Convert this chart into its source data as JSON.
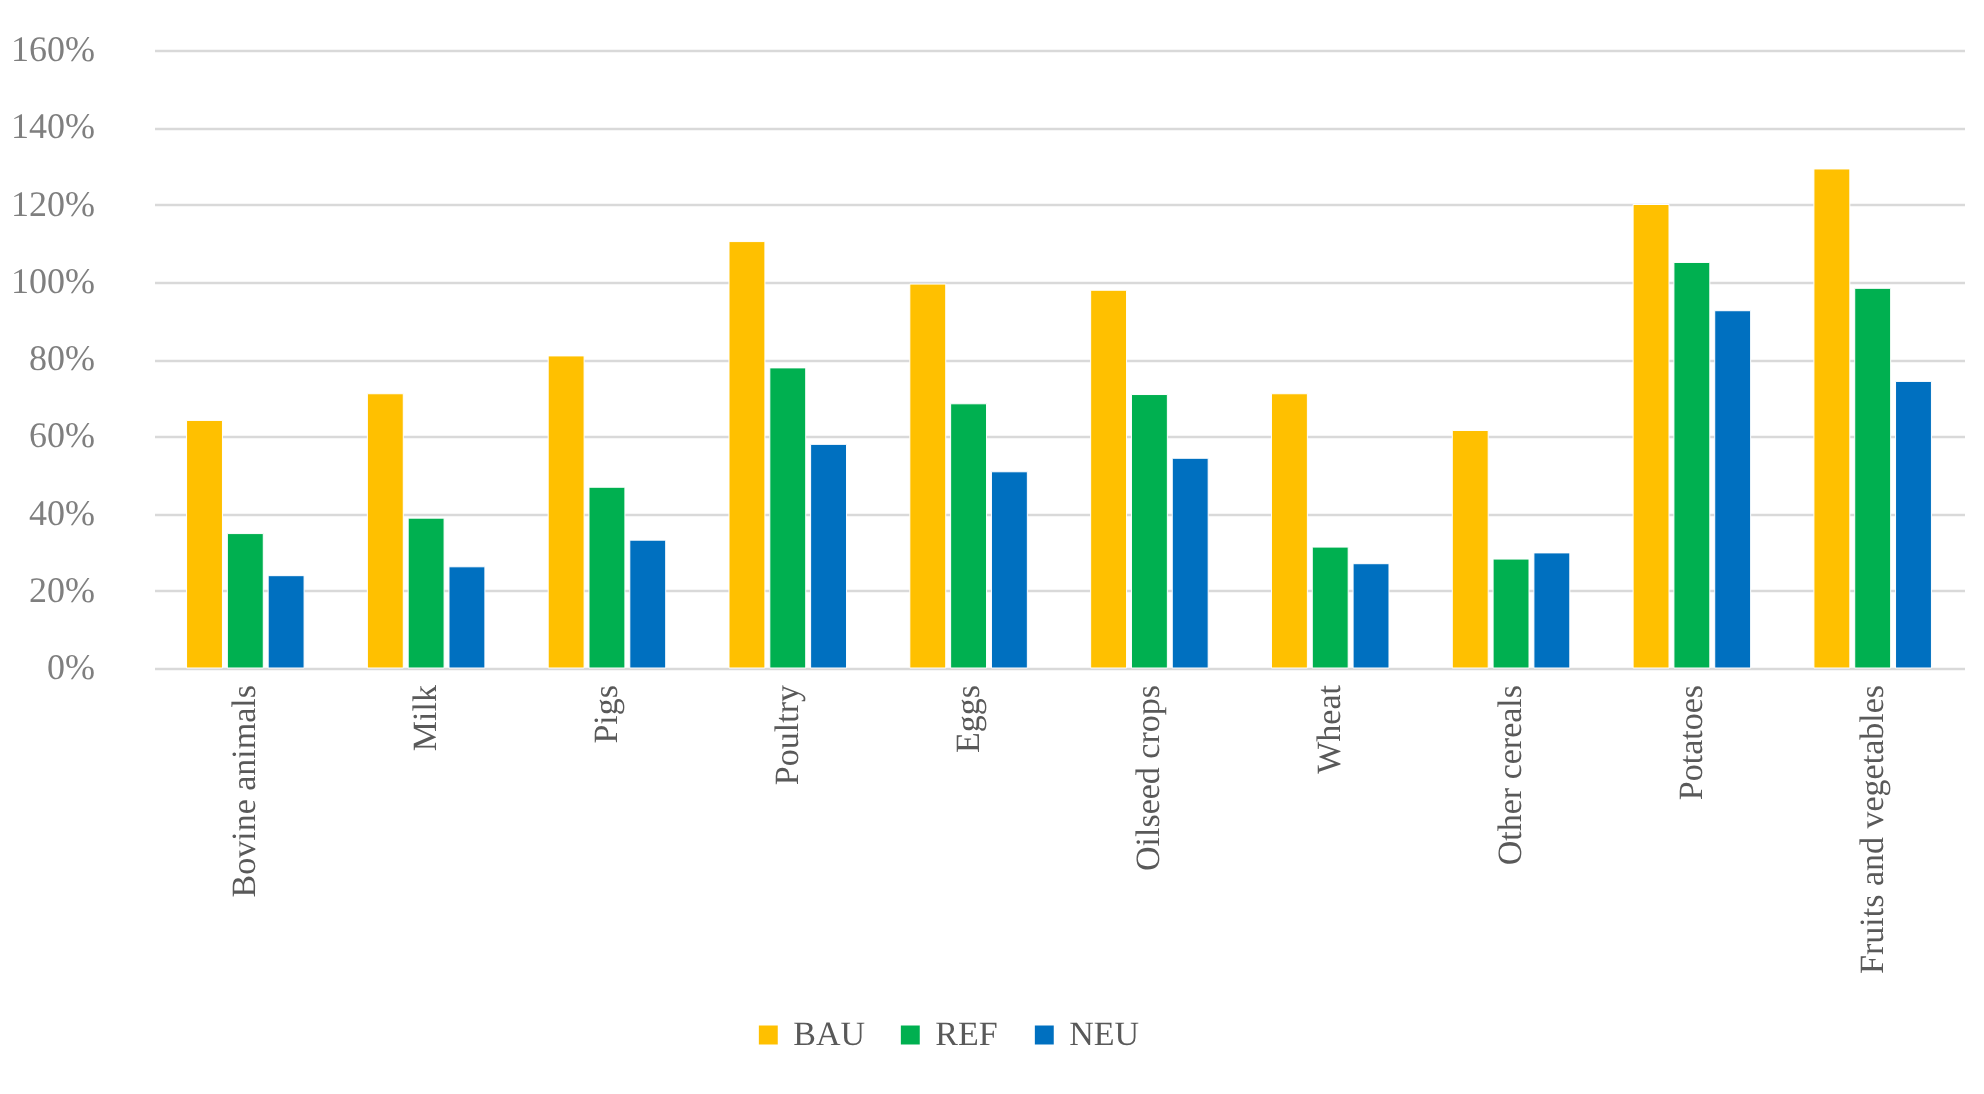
{
  "chart_data": {
    "type": "bar",
    "categories": [
      "Bovine animals",
      "Milk",
      "Pigs",
      "Poultry",
      "Eggs",
      "Oilseed crops",
      "Wheat",
      "Other cereals",
      "Potatoes",
      "Fruits and vegetables"
    ],
    "series": [
      {
        "name": "BAU",
        "color": "#ffc000",
        "values": [
          64.1,
          71,
          80.8,
          110.4,
          99.4,
          97.8,
          71,
          61.5,
          120,
          129.2
        ]
      },
      {
        "name": "REF",
        "color": "#00b050",
        "values": [
          34.8,
          38.8,
          46.8,
          77.7,
          68.4,
          70.8,
          31.3,
          28.2,
          105,
          98.3
        ]
      },
      {
        "name": "NEU",
        "color": "#0070c0",
        "values": [
          23.9,
          26.2,
          33.1,
          57.9,
          50.8,
          54.3,
          27,
          29.8,
          92.5,
          74.2
        ]
      }
    ],
    "ylim": [
      0,
      160
    ],
    "yticks": [
      {
        "value": 0,
        "label": "0%"
      },
      {
        "value": 20,
        "label": "20%"
      },
      {
        "value": 40,
        "label": "40%"
      },
      {
        "value": 60,
        "label": "60%"
      },
      {
        "value": 80,
        "label": "80%"
      },
      {
        "value": 100,
        "label": "100%"
      },
      {
        "value": 120,
        "label": "120%"
      },
      {
        "value": 140,
        "label": "140%"
      },
      {
        "value": 160,
        "label": "160%"
      }
    ],
    "grid": "y",
    "legend": "bottom"
  }
}
